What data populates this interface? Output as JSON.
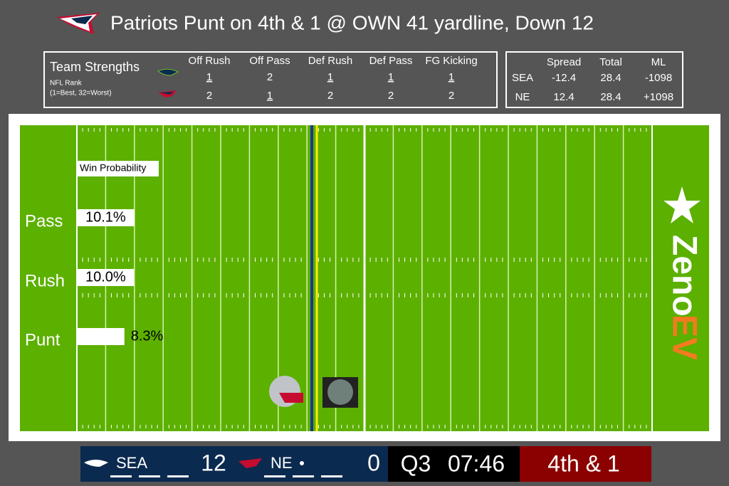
{
  "header": {
    "title": "Patriots Punt on 4th & 1 @ OWN 41 yardline, Down 12"
  },
  "strengths": {
    "title": "Team Strengths",
    "subtitle": "NFL Rank",
    "note": "(1=Best, 32=Worst)",
    "columns": [
      "Off Rush",
      "Off Pass",
      "Def Rush",
      "Def Pass",
      "FG Kicking"
    ],
    "rows": [
      [
        1,
        2,
        1,
        1,
        1
      ],
      [
        2,
        1,
        2,
        2,
        2
      ]
    ]
  },
  "odds": {
    "columns": [
      "Spread",
      "Total",
      "ML"
    ],
    "rows": [
      {
        "team": "SEA",
        "values": [
          -12.4,
          28.4,
          -1098
        ]
      },
      {
        "team": "NE",
        "values": [
          12.4,
          28.4,
          "+1098"
        ]
      }
    ]
  },
  "win_probability": {
    "title": "Win Probability",
    "categories": [
      "Pass",
      "Rush",
      "Punt"
    ],
    "values": [
      10.1,
      10.0,
      8.3
    ],
    "value_labels": [
      "10.1%",
      "10.0%",
      "8.3%"
    ]
  },
  "logo": {
    "part1": "Zeno",
    "part2": "EV"
  },
  "scoreboard": {
    "away": {
      "team": "SEA",
      "score": 12
    },
    "home": {
      "team": "NE",
      "score": 0
    },
    "quarter": "Q3",
    "clock": "07:46",
    "down": "4th & 1"
  }
}
